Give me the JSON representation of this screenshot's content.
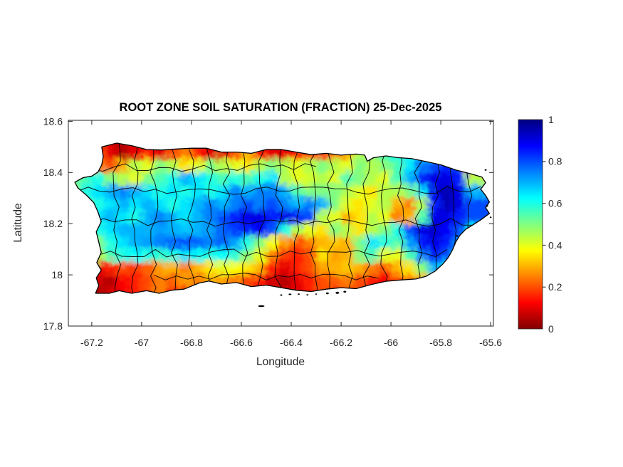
{
  "figure": {
    "title": "ROOT ZONE SOIL SATURATION (FRACTION) 25-Dec-2025",
    "axes": {
      "xlabel": "Longitude",
      "ylabel": "Latitude",
      "x_tick_values": [
        -67.2,
        -67,
        -66.8,
        -66.6,
        -66.4,
        -66.2,
        -66,
        -65.8,
        -65.6
      ],
      "x_tick_labels": [
        "-67.2",
        "-67",
        "-66.8",
        "-66.6",
        "-66.4",
        "-66.2",
        "-66",
        "-65.8",
        "-65.6"
      ],
      "y_tick_values": [
        18.6,
        18.4,
        18.2,
        18,
        17.8
      ],
      "y_tick_labels": [
        "18.6",
        "18.4",
        "18.2",
        "18",
        "17.8"
      ]
    },
    "colorbar": {
      "tick_values": [
        1,
        0.8,
        0.6,
        0.4,
        0.2,
        0
      ],
      "tick_labels": [
        "1",
        "0.8",
        "0.6",
        "0.4",
        "0.2",
        "0"
      ]
    },
    "colors": {
      "background": "#ffffff",
      "axis": "#262626",
      "title": "#000000",
      "boundary_lines": "#000000"
    }
  },
  "chart_data": {
    "type": "heatmap",
    "title": "ROOT ZONE SOIL SATURATION (FRACTION) 25-Dec-2025",
    "xlabel": "Longitude",
    "ylabel": "Latitude",
    "xlim": [
      -67.294,
      -65.589
    ],
    "ylim": [
      17.8,
      18.604
    ],
    "value_range": [
      0,
      1
    ],
    "colormap": "jet-reversed (0 = dark red, 1 = dark blue)",
    "colorbar_position": "right",
    "grid": {
      "lon_start": -67.275,
      "lon_step": 0.05,
      "lat_start": 18.525,
      "lat_step": -0.05,
      "ncols": 34,
      "nrows": 13,
      "values": [
        [
          null,
          null,
          null,
          null,
          null,
          null,
          null,
          null,
          null,
          null,
          null,
          null,
          null,
          null,
          null,
          null,
          null,
          null,
          null,
          null,
          null,
          null,
          null,
          null,
          null,
          null,
          null,
          null,
          null,
          null,
          null,
          null,
          null,
          null
        ],
        [
          null,
          null,
          0.2,
          0.1,
          0.05,
          0.1,
          0.15,
          0.1,
          0.2,
          0.25,
          0.15,
          0.1,
          0.1,
          0.2,
          0.3,
          0.15,
          0.1,
          0.1,
          0.15,
          0.2,
          0.15,
          0.25,
          0.3,
          0.45,
          0.5,
          0.55,
          0.6,
          0.6,
          0.7,
          0.6,
          0.35,
          0.7,
          null,
          null
        ],
        [
          null,
          null,
          0.25,
          0.2,
          0.3,
          0.45,
          0.4,
          0.5,
          0.45,
          0.35,
          0.4,
          0.5,
          0.45,
          0.4,
          0.35,
          0.45,
          0.5,
          0.45,
          0.4,
          0.45,
          0.5,
          0.45,
          0.4,
          0.5,
          0.45,
          0.5,
          0.55,
          0.65,
          0.75,
          0.8,
          0.85,
          0.8,
          0.3,
          null
        ],
        [
          0.5,
          0.55,
          0.6,
          0.5,
          0.45,
          0.4,
          0.5,
          0.55,
          0.6,
          0.7,
          0.65,
          0.6,
          0.55,
          0.6,
          0.55,
          0.6,
          0.65,
          0.45,
          0.4,
          0.42,
          0.45,
          0.4,
          0.55,
          0.5,
          0.45,
          0.4,
          0.55,
          0.7,
          0.85,
          0.9,
          0.9,
          0.85,
          0.45,
          null
        ],
        [
          0.5,
          0.6,
          0.65,
          0.7,
          0.75,
          0.7,
          0.65,
          0.6,
          0.65,
          0.6,
          0.65,
          0.6,
          0.65,
          0.75,
          0.7,
          0.75,
          0.75,
          0.7,
          0.55,
          0.5,
          0.5,
          0.5,
          0.45,
          0.4,
          0.35,
          0.45,
          0.45,
          0.5,
          0.65,
          0.9,
          0.95,
          0.9,
          0.7,
          null
        ],
        [
          0.45,
          0.55,
          0.6,
          0.65,
          0.7,
          0.65,
          0.7,
          0.65,
          0.6,
          0.65,
          0.7,
          0.75,
          0.7,
          0.75,
          0.8,
          0.75,
          0.8,
          0.75,
          0.7,
          0.75,
          0.7,
          0.5,
          0.4,
          0.35,
          0.4,
          0.45,
          0.3,
          0.25,
          0.45,
          0.85,
          0.95,
          0.9,
          0.8,
          null
        ],
        [
          0.5,
          0.6,
          0.65,
          0.7,
          0.65,
          0.6,
          0.7,
          0.75,
          0.7,
          0.65,
          0.7,
          0.75,
          0.8,
          0.85,
          0.9,
          0.9,
          0.85,
          0.9,
          0.85,
          0.8,
          0.45,
          0.4,
          0.3,
          0.35,
          0.45,
          0.4,
          0.25,
          0.3,
          0.55,
          0.9,
          0.9,
          0.85,
          0.8,
          null
        ],
        [
          null,
          0.5,
          0.6,
          0.65,
          0.7,
          0.7,
          0.7,
          0.72,
          0.7,
          0.68,
          0.7,
          0.72,
          0.78,
          0.82,
          0.85,
          0.88,
          0.8,
          0.6,
          0.45,
          0.4,
          0.35,
          0.5,
          0.45,
          0.35,
          0.45,
          0.5,
          0.6,
          0.8,
          0.9,
          0.92,
          0.88,
          0.8,
          0.65,
          null
        ],
        [
          null,
          0.4,
          0.5,
          0.6,
          0.65,
          0.7,
          0.72,
          0.75,
          0.78,
          0.8,
          0.78,
          0.75,
          0.78,
          0.72,
          0.6,
          0.5,
          0.38,
          0.28,
          0.2,
          0.25,
          0.3,
          0.32,
          0.3,
          0.5,
          0.65,
          0.6,
          0.55,
          0.72,
          0.85,
          0.9,
          0.85,
          0.75,
          0.55,
          null
        ],
        [
          null,
          0.35,
          0.45,
          0.55,
          0.6,
          0.62,
          0.6,
          0.58,
          0.6,
          0.65,
          0.62,
          0.6,
          0.62,
          0.58,
          0.5,
          0.4,
          0.25,
          0.18,
          0.15,
          0.2,
          0.35,
          0.28,
          0.3,
          0.5,
          0.55,
          0.4,
          0.4,
          0.55,
          0.75,
          0.85,
          0.8,
          0.65,
          0.45,
          null
        ],
        [
          null,
          0.15,
          0.1,
          0.15,
          0.2,
          0.18,
          0.22,
          0.28,
          0.3,
          0.25,
          0.3,
          0.35,
          0.4,
          0.38,
          0.35,
          0.3,
          0.15,
          0.1,
          0.15,
          0.2,
          0.28,
          0.3,
          0.32,
          0.3,
          0.25,
          0.2,
          0.3,
          0.35,
          0.5,
          0.7,
          0.65,
          0.4,
          null,
          null
        ],
        [
          null,
          0.05,
          0.08,
          0.05,
          0.12,
          0.15,
          0.2,
          0.25,
          0.22,
          0.28,
          0.25,
          0.3,
          0.28,
          0.25,
          0.2,
          0.15,
          0.08,
          0.05,
          0.1,
          0.15,
          0.2,
          0.22,
          0.25,
          0.2,
          0.15,
          0.12,
          0.2,
          0.25,
          0.3,
          0.35,
          null,
          null,
          null,
          null
        ],
        [
          null,
          0.05,
          0.05,
          0.08,
          null,
          null,
          null,
          null,
          0.15,
          0.12,
          null,
          null,
          null,
          null,
          null,
          null,
          0.1,
          0.08,
          null,
          null,
          null,
          0.15,
          0.12,
          null,
          null,
          null,
          0.15,
          0.12,
          null,
          null,
          null,
          null,
          null,
          null
        ]
      ]
    },
    "coastline": [
      [
        -67.16,
        18.5
      ],
      [
        -67.1,
        18.515
      ],
      [
        -67.04,
        18.505
      ],
      [
        -66.98,
        18.49
      ],
      [
        -66.92,
        18.488
      ],
      [
        -66.86,
        18.492
      ],
      [
        -66.8,
        18.495
      ],
      [
        -66.74,
        18.495
      ],
      [
        -66.68,
        18.48
      ],
      [
        -66.62,
        18.48
      ],
      [
        -66.56,
        18.475
      ],
      [
        -66.5,
        18.49
      ],
      [
        -66.44,
        18.49
      ],
      [
        -66.38,
        18.48
      ],
      [
        -66.32,
        18.47
      ],
      [
        -66.26,
        18.475
      ],
      [
        -66.2,
        18.468
      ],
      [
        -66.14,
        18.472
      ],
      [
        -66.105,
        18.468
      ],
      [
        -66.095,
        18.444
      ],
      [
        -66.07,
        18.458
      ],
      [
        -66.02,
        18.465
      ],
      [
        -65.97,
        18.458
      ],
      [
        -65.92,
        18.455
      ],
      [
        -65.86,
        18.443
      ],
      [
        -65.8,
        18.43
      ],
      [
        -65.74,
        18.41
      ],
      [
        -65.68,
        18.395
      ],
      [
        -65.635,
        18.382
      ],
      [
        -65.62,
        18.36
      ],
      [
        -65.64,
        18.335
      ],
      [
        -65.62,
        18.31
      ],
      [
        -65.605,
        18.285
      ],
      [
        -65.62,
        18.262
      ],
      [
        -65.605,
        18.24
      ],
      [
        -65.635,
        18.218
      ],
      [
        -65.67,
        18.196
      ],
      [
        -65.7,
        18.178
      ],
      [
        -65.724,
        18.154
      ],
      [
        -65.74,
        18.128
      ],
      [
        -65.752,
        18.1
      ],
      [
        -65.77,
        18.068
      ],
      [
        -65.792,
        18.042
      ],
      [
        -65.824,
        18.014
      ],
      [
        -65.86,
        17.994
      ],
      [
        -65.9,
        17.984
      ],
      [
        -65.96,
        17.98
      ],
      [
        -66.02,
        17.975
      ],
      [
        -66.08,
        17.962
      ],
      [
        -66.14,
        17.946
      ],
      [
        -66.2,
        17.95
      ],
      [
        -66.26,
        17.944
      ],
      [
        -66.32,
        17.935
      ],
      [
        -66.38,
        17.94
      ],
      [
        -66.44,
        17.95
      ],
      [
        -66.5,
        17.96
      ],
      [
        -66.56,
        17.954
      ],
      [
        -66.62,
        17.97
      ],
      [
        -66.68,
        17.964
      ],
      [
        -66.73,
        17.976
      ],
      [
        -66.77,
        17.968
      ],
      [
        -66.83,
        17.944
      ],
      [
        -66.88,
        17.94
      ],
      [
        -66.93,
        17.928
      ],
      [
        -66.98,
        17.938
      ],
      [
        -67.04,
        17.928
      ],
      [
        -67.09,
        17.938
      ],
      [
        -67.13,
        17.928
      ],
      [
        -67.185,
        17.928
      ],
      [
        -67.172,
        17.958
      ],
      [
        -67.182,
        17.988
      ],
      [
        -67.162,
        18.018
      ],
      [
        -67.18,
        18.048
      ],
      [
        -67.162,
        18.088
      ],
      [
        -67.172,
        18.128
      ],
      [
        -67.182,
        18.168
      ],
      [
        -67.162,
        18.208
      ],
      [
        -67.176,
        18.248
      ],
      [
        -67.192,
        18.282
      ],
      [
        -67.222,
        18.312
      ],
      [
        -67.256,
        18.34
      ],
      [
        -67.268,
        18.362
      ],
      [
        -67.235,
        18.38
      ],
      [
        -67.2,
        18.386
      ],
      [
        -67.175,
        18.402
      ],
      [
        -67.16,
        18.43
      ],
      [
        -67.154,
        18.462
      ]
    ],
    "islets": [
      [
        -66.52,
        17.878,
        9,
        2.6
      ],
      [
        -66.44,
        17.921,
        3,
        2
      ],
      [
        -66.405,
        17.924,
        4,
        2
      ],
      [
        -66.37,
        17.925,
        3,
        1.8
      ],
      [
        -66.335,
        17.922,
        3,
        1.8
      ],
      [
        -66.3,
        17.925,
        2.5,
        1.8
      ],
      [
        -66.255,
        17.928,
        4,
        2.5
      ],
      [
        -66.215,
        17.93,
        5,
        3
      ],
      [
        -66.185,
        17.934,
        4,
        2.5
      ],
      [
        -65.735,
        18.152,
        3,
        2.2
      ],
      [
        -65.62,
        18.41,
        3,
        2
      ],
      [
        -65.615,
        18.27,
        3,
        2.5
      ],
      [
        -65.6,
        18.225,
        2.5,
        2
      ]
    ],
    "boundaries": {
      "vertical_lons": [
        -67.1,
        -67.03,
        -66.95,
        -66.87,
        -66.8,
        -66.73,
        -66.66,
        -66.59,
        -66.52,
        -66.45,
        -66.38,
        -66.31,
        -66.24,
        -66.17,
        -66.1,
        -66.03,
        -65.96,
        -65.89,
        -65.82,
        -65.75,
        -65.68
      ],
      "horizontal_lats": [
        {
          "lat": 18.42,
          "from": -67.2,
          "to": -66.28
        },
        {
          "lat": 18.33,
          "from": -67.26,
          "to": -65.6
        },
        {
          "lat": 18.205,
          "from": -67.2,
          "to": -65.62
        },
        {
          "lat": 18.085,
          "from": -67.17,
          "to": -65.74
        },
        {
          "lat": 17.995,
          "from": -66.95,
          "to": -66.05
        }
      ]
    }
  }
}
